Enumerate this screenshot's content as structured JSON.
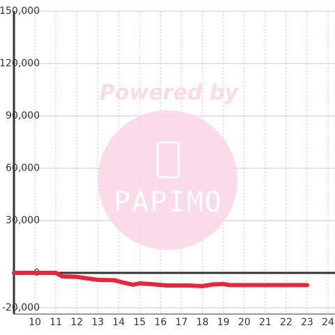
{
  "chart_data": {
    "type": "line",
    "watermark": {
      "text": "Powered by",
      "logo": "PAPIMO"
    },
    "x": [
      9,
      11,
      11.3,
      12,
      12.7,
      13,
      13.8,
      14.2,
      14.7,
      15,
      15.5,
      16.3,
      17.3,
      18,
      18.3,
      18.5,
      19,
      19.3,
      23
    ],
    "series": [
      {
        "color": "#e8263a",
        "values": [
          0,
          0,
          -2000,
          -2300,
          -3500,
          -4000,
          -4200,
          -5500,
          -6800,
          -6000,
          -6400,
          -7200,
          -7200,
          -7600,
          -7000,
          -6600,
          -6400,
          -7000,
          -7000
        ]
      }
    ],
    "xlim": [
      9,
      24.4
    ],
    "xticks": [
      10,
      11,
      12,
      13,
      14,
      15,
      16,
      17,
      18,
      19,
      20,
      21,
      22,
      23,
      24
    ],
    "ylim": [
      -20000,
      150000
    ],
    "yticks": [
      {
        "value": -20000,
        "label": "-20,000"
      },
      0,
      {
        "value": 30000,
        "label": "30,000"
      },
      {
        "value": 60000,
        "label": "60,000"
      },
      {
        "value": 90000,
        "label": "90,000"
      },
      {
        "value": 120000,
        "label": "120,000"
      },
      {
        "value": 150000,
        "label": "150,000"
      }
    ],
    "grid": true
  }
}
